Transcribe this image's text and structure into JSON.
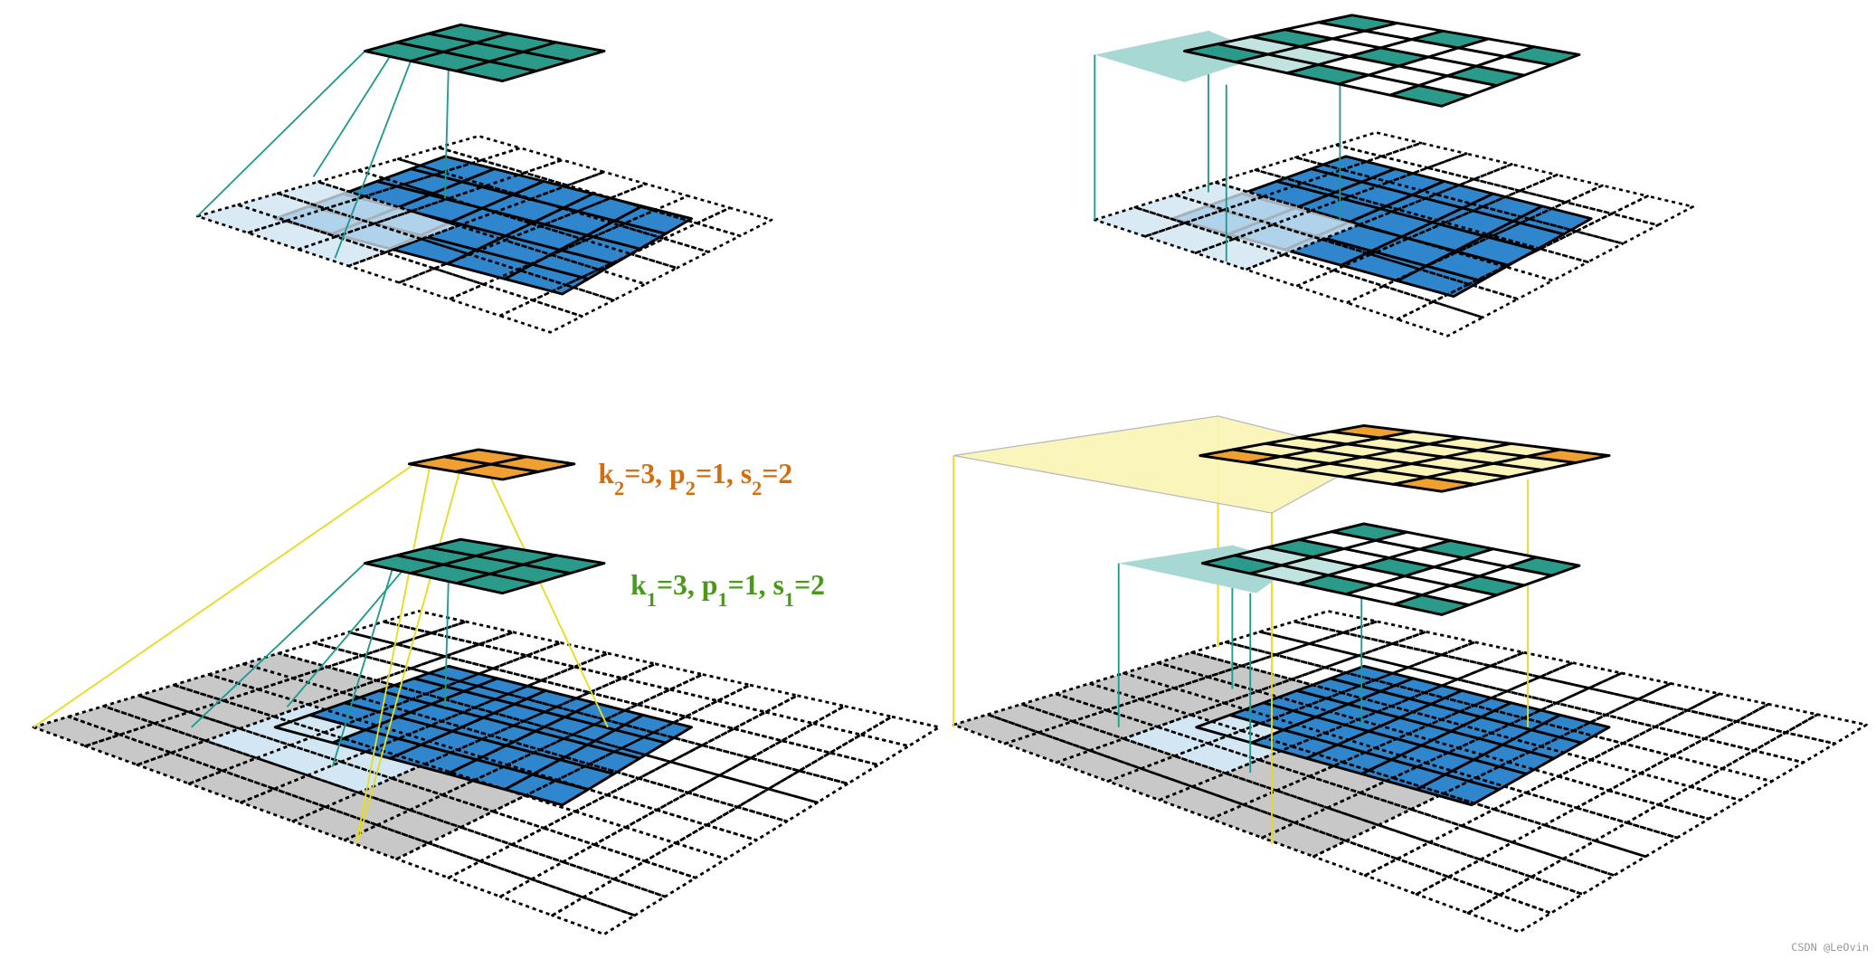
{
  "annotations": [
    {
      "parts": [
        "k",
        "2",
        "=3, p",
        "2",
        "=1, s",
        "2",
        "=2"
      ]
    },
    {
      "parts": [
        "k",
        "1",
        "=3, p",
        "1",
        "=1, s",
        "1",
        "=2"
      ]
    }
  ],
  "watermark": "CSDN @LeOvin"
}
